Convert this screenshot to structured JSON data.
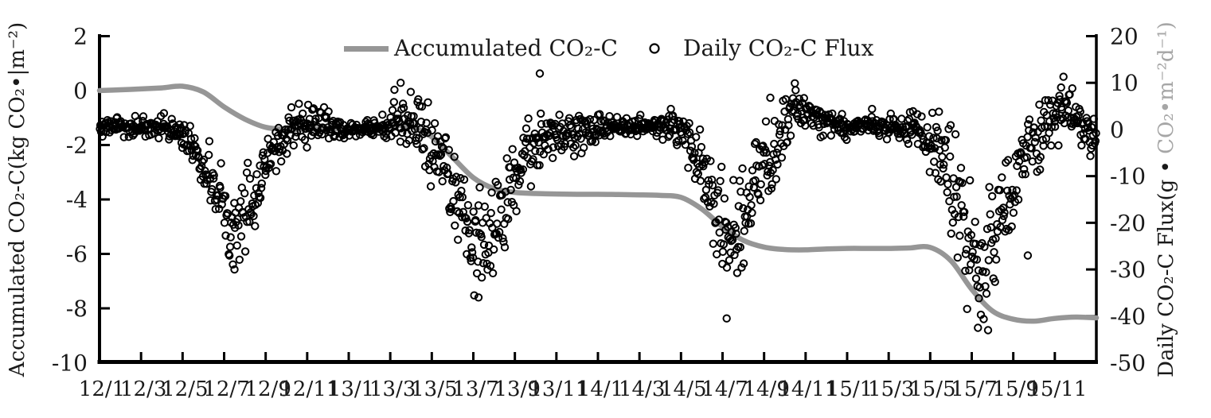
{
  "page": {
    "background": "#ffffff"
  },
  "colors": {
    "line_gray": "#969696",
    "scatter_black": "#000000",
    "axis_black": "#000000",
    "text_black": "#1a1a1a",
    "gray_label": "#a6a6a6"
  },
  "chart_data": {
    "type": "line+scatter",
    "title": "",
    "months_total": 48,
    "x_start_label": "12/1",
    "x_labels": [
      "12/1",
      "12/3",
      "12/5",
      "12/7",
      "12/9",
      "12/11",
      "13/1",
      "13/3",
      "13/5",
      "13/7",
      "13/9",
      "13/11",
      "14/1",
      "14/3",
      "14/5",
      "14/7",
      "14/9",
      "14/11",
      "15/1",
      "15/3",
      "15/5",
      "15/7",
      "15/9",
      "15/11"
    ],
    "left_axis": {
      "title": "Accumulated CO₂-C(kg CO₂•|m⁻²)",
      "range": [
        -10,
        2
      ],
      "tick_step": 2,
      "ticks": [
        "2",
        "0",
        "-2",
        "-4",
        "-6",
        "-8",
        "-10"
      ]
    },
    "right_axis": {
      "title_black": "Daily CO₂-C Flux(g • ",
      "title_gray": "CO₂•m⁻²d⁻¹)",
      "range": [
        -50,
        20
      ],
      "tick_step": 10,
      "ticks": [
        "20",
        "10",
        "0",
        "-10",
        "-20",
        "-30",
        "-40",
        "-50"
      ]
    },
    "series": [
      {
        "name": "Accumulated CO₂-C",
        "type": "line",
        "axis": "left",
        "unit": "kg CO₂·m⁻²",
        "color": "#969696",
        "stroke_width": 6.5,
        "month_index": [
          0,
          1,
          2,
          3,
          4,
          5,
          6,
          7,
          8,
          9,
          10,
          11,
          12,
          13,
          14,
          15,
          16,
          17,
          18,
          19,
          20,
          21,
          22,
          23,
          24,
          25,
          26,
          27,
          28,
          29,
          30,
          31,
          32,
          33,
          34,
          35,
          36,
          37,
          38,
          39,
          40,
          41,
          42,
          43,
          44,
          45,
          46,
          47,
          48
        ],
        "values": [
          0,
          0.03,
          0.06,
          0.1,
          0.16,
          -0.05,
          -0.6,
          -1.05,
          -1.35,
          -1.42,
          -1.42,
          -1.4,
          -1.38,
          -1.34,
          -1.27,
          -1.33,
          -1.7,
          -2.45,
          -3.2,
          -3.6,
          -3.74,
          -3.78,
          -3.8,
          -3.81,
          -3.81,
          -3.82,
          -3.83,
          -3.85,
          -3.92,
          -4.35,
          -5.0,
          -5.5,
          -5.75,
          -5.84,
          -5.85,
          -5.82,
          -5.8,
          -5.8,
          -5.8,
          -5.78,
          -5.76,
          -6.25,
          -7.3,
          -8.1,
          -8.4,
          -8.47,
          -8.37,
          -8.32,
          -8.35
        ]
      },
      {
        "name": "Daily CO₂-C Flux",
        "type": "scatter",
        "axis": "right",
        "unit": "g CO₂·m⁻²·d⁻¹",
        "marker": "open-circle",
        "marker_radius": 4.2,
        "marker_stroke": 2,
        "points_per_month": 30,
        "seed": 20125,
        "note": "daily points reconstructed from per-month mean/sd envelope read off the figure",
        "monthly_mean": [
          0.4,
          0.5,
          0.6,
          0.5,
          -3.2,
          -13,
          -22,
          -13,
          -4.5,
          0.5,
          1.5,
          0.2,
          0.2,
          0.2,
          1.5,
          0,
          -8,
          -20,
          -27,
          -15,
          -5,
          -2.5,
          -1.5,
          0,
          0.5,
          0.5,
          1.0,
          0.5,
          -4,
          -15,
          -24,
          -13,
          -5,
          5,
          3,
          0.8,
          0.5,
          0.5,
          0.8,
          0.3,
          -5,
          -18,
          -29,
          -17,
          -7,
          0,
          5,
          -1
        ],
        "monthly_sd": [
          0.9,
          1.1,
          1.2,
          1.4,
          2.5,
          4,
          4,
          4,
          2.5,
          2.0,
          1.8,
          1.2,
          0.8,
          0.9,
          2.8,
          2.8,
          4.5,
          5.5,
          5,
          5,
          3.5,
          3.5,
          2.5,
          1.5,
          1.0,
          1.0,
          1.2,
          1.5,
          3.5,
          6,
          6,
          5,
          4,
          2.2,
          1.8,
          1.2,
          1.0,
          1.1,
          1.2,
          1.8,
          4,
          7,
          7,
          6,
          4,
          3.5,
          2.5,
          1.8
        ],
        "outliers": [
          [
            3.1,
            3.5
          ],
          [
            6.5,
            -30
          ],
          [
            9.6,
            5.5
          ],
          [
            10.3,
            4.5
          ],
          [
            14.2,
            8.5
          ],
          [
            14.5,
            10
          ],
          [
            18.25,
            -36
          ],
          [
            21.2,
            12
          ],
          [
            30.2,
            -40.5
          ],
          [
            32.3,
            6.8
          ],
          [
            37.2,
            4.4
          ],
          [
            38.1,
            3.4
          ],
          [
            42.3,
            -42.5
          ],
          [
            44.7,
            -27
          ],
          [
            46.3,
            9
          ]
        ]
      }
    ]
  }
}
